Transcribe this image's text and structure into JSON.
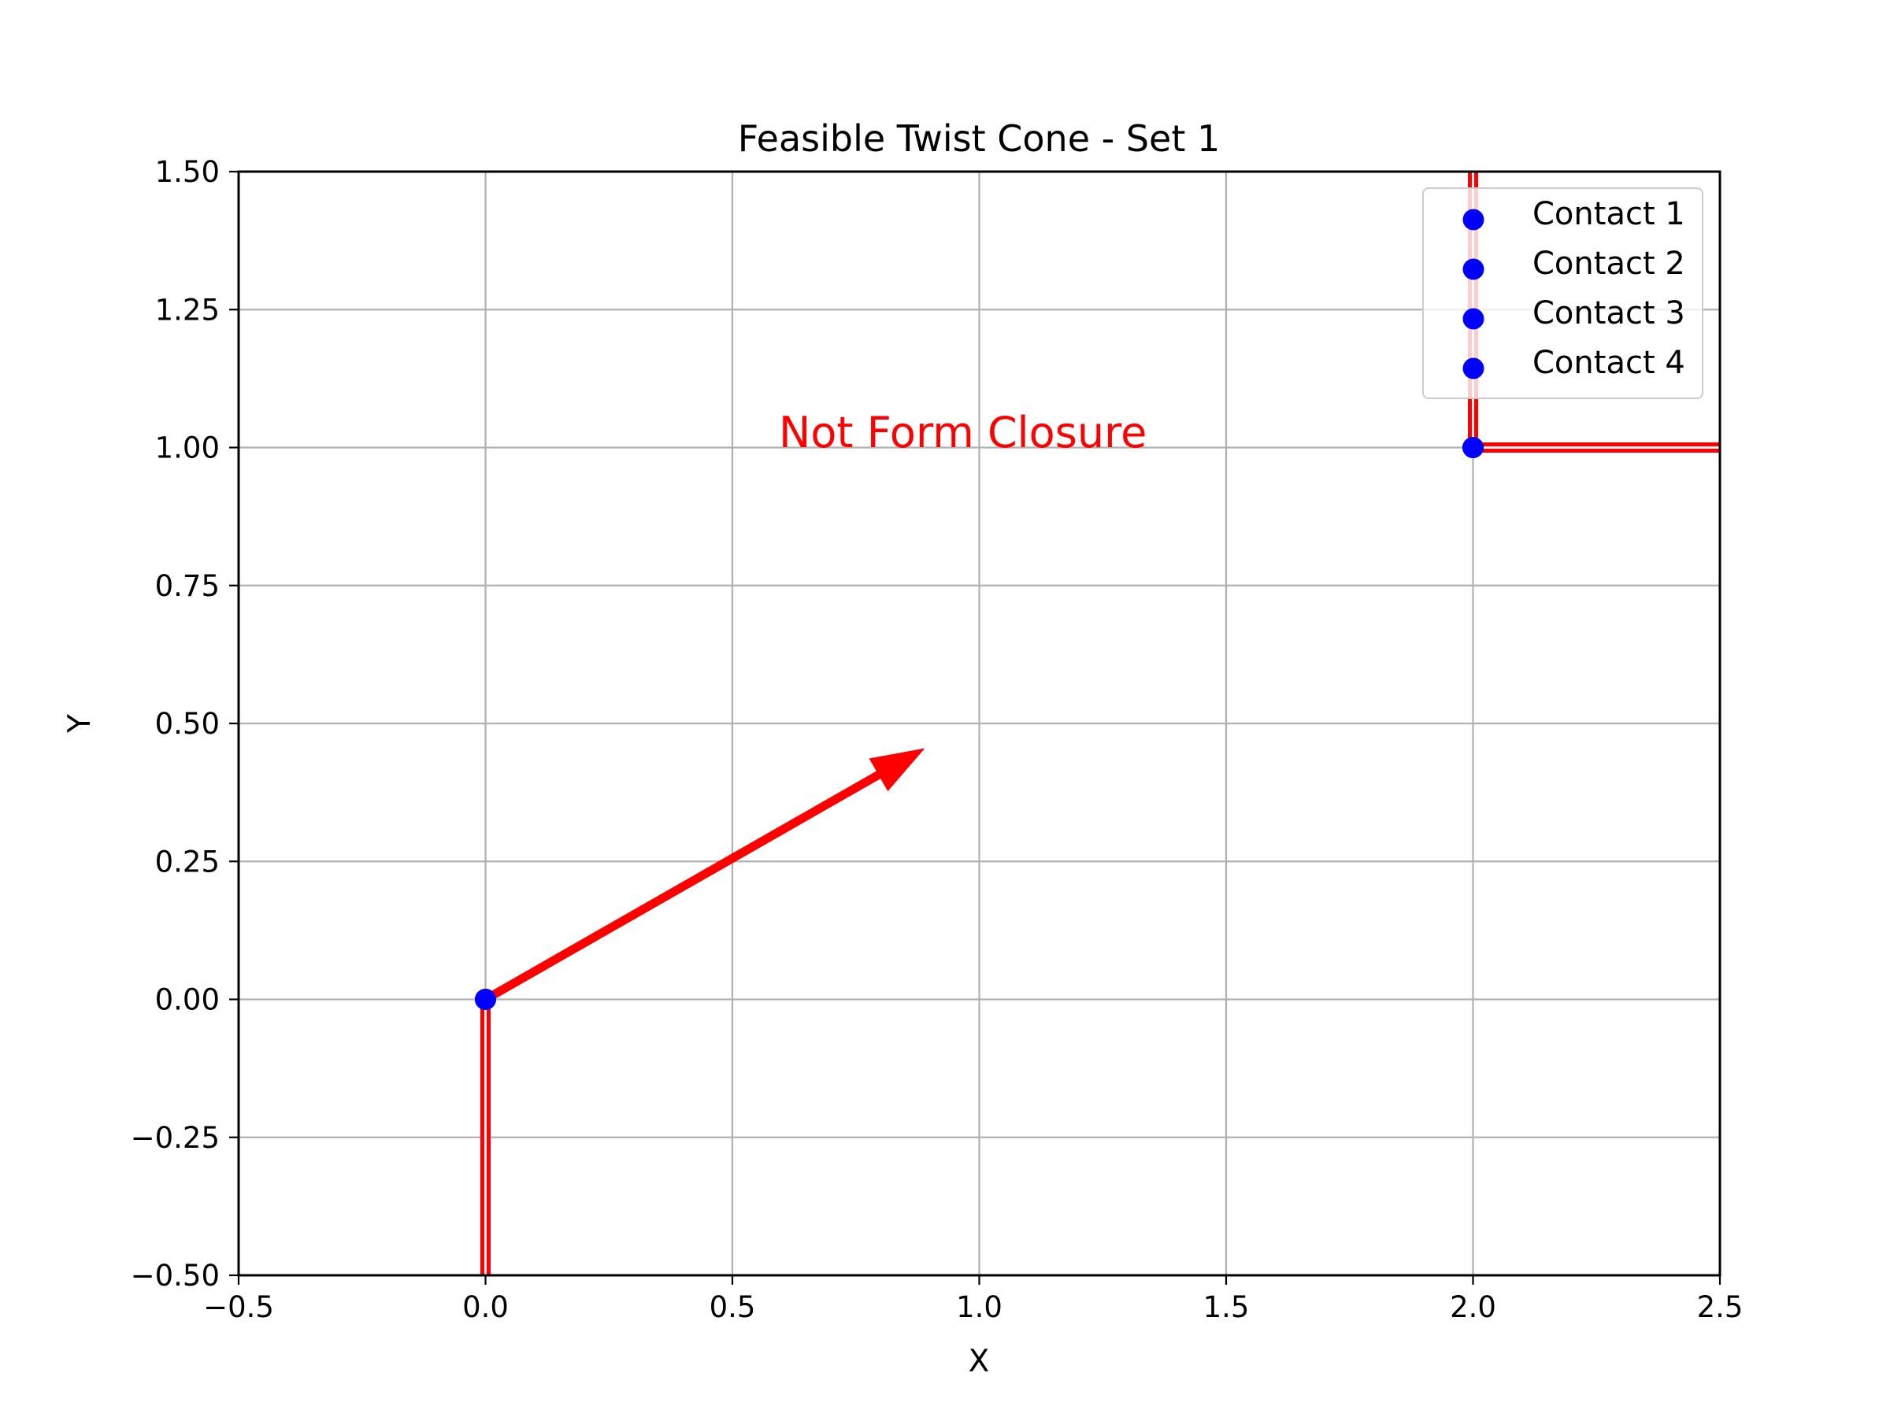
{
  "chart_data": {
    "type": "scatter",
    "title": "Feasible Twist Cone - Set 1",
    "xlabel": "X",
    "ylabel": "Y",
    "xlim": [
      -0.5,
      2.5
    ],
    "ylim": [
      -0.5,
      1.5
    ],
    "xticks": [
      -0.5,
      0.0,
      0.5,
      1.0,
      1.5,
      2.0,
      2.5
    ],
    "xtick_labels": [
      "−0.5",
      "0.0",
      "0.5",
      "1.0",
      "1.5",
      "2.0",
      "2.5"
    ],
    "yticks": [
      -0.5,
      -0.25,
      0.0,
      0.25,
      0.5,
      0.75,
      1.0,
      1.25,
      1.5
    ],
    "ytick_labels": [
      "−0.50",
      "−0.25",
      "0.00",
      "0.25",
      "0.50",
      "0.75",
      "1.00",
      "1.25",
      "1.50"
    ],
    "grid": true,
    "legend_position": "top-right",
    "series": [
      {
        "name": "Contact 1",
        "x": [
          0.0
        ],
        "y": [
          0.0
        ],
        "color": "#0000ff"
      },
      {
        "name": "Contact 2",
        "x": [
          2.0
        ],
        "y": [
          1.0
        ],
        "color": "#0000ff"
      },
      {
        "name": "Contact 3",
        "x": [
          0.0
        ],
        "y": [
          0.0
        ],
        "color": "#0000ff"
      },
      {
        "name": "Contact 4",
        "x": [
          2.0
        ],
        "y": [
          1.0
        ],
        "color": "#0000ff"
      }
    ],
    "cone_lines": [
      {
        "from": [
          0.0,
          0.0
        ],
        "to": [
          0.0,
          -0.5
        ],
        "color": "#ff0000"
      },
      {
        "from": [
          2.0,
          1.0
        ],
        "to": [
          2.0,
          1.5
        ],
        "color": "#ff0000"
      },
      {
        "from": [
          2.0,
          1.0
        ],
        "to": [
          2.5,
          1.0
        ],
        "color": "#ff0000"
      }
    ],
    "arrow": {
      "from": [
        0.0,
        0.0
      ],
      "to": [
        0.89,
        0.455
      ],
      "color": "#ff0000"
    },
    "annotation": {
      "text": "Not Form Closure",
      "x": 0.6,
      "y": 1.0,
      "color": "#ff0000"
    }
  }
}
